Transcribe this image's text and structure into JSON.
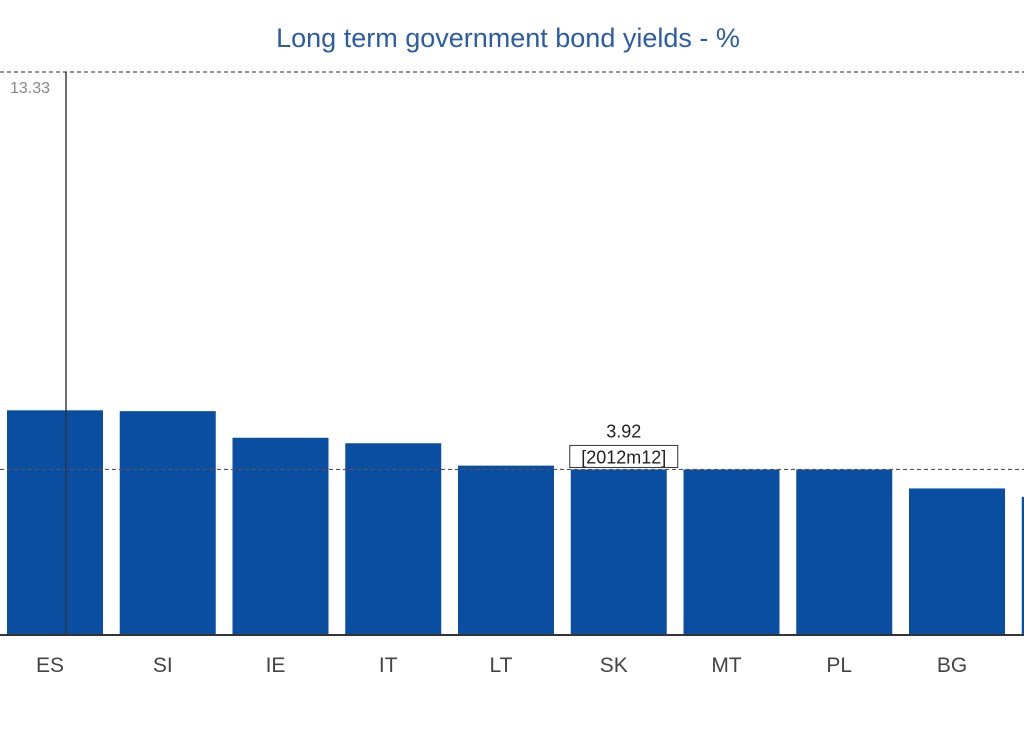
{
  "chart_data": {
    "type": "bar",
    "title": "Long term government bond yields - %",
    "xlabel": "",
    "ylabel": "",
    "categories": [
      "ES",
      "SI",
      "IE",
      "IT",
      "LT",
      "SK",
      "MT",
      "PL",
      "BG"
    ],
    "values": [
      5.32,
      5.3,
      4.67,
      4.54,
      4.01,
      3.92,
      3.92,
      3.92,
      3.47
    ],
    "ylim": [
      0,
      13.33
    ],
    "reference_lines": [
      {
        "value": 13.33,
        "label": "13.33"
      },
      {
        "value": 3.92,
        "label": "3.92",
        "sublabel": "[2012m12]"
      }
    ],
    "grid": false,
    "legend": "none",
    "colors": {
      "bar": "#0a4ea2",
      "title": "#2a5da6",
      "axis": "#333333",
      "reference": "#555555",
      "tick": "#444444",
      "max_label": "#888888"
    }
  }
}
